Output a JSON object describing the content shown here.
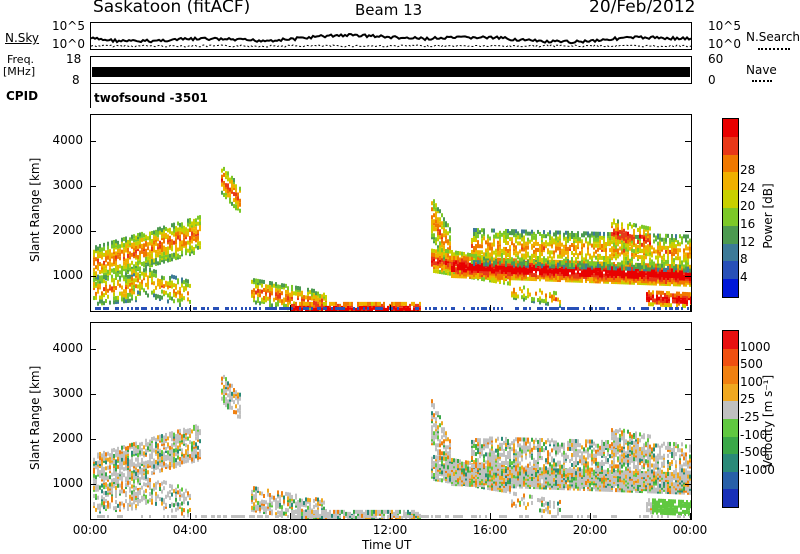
{
  "header": {
    "title": "Saskatoon (fitACF)",
    "beam": "Beam 13",
    "date": "20/Feb/2012"
  },
  "status_panels": {
    "nsky_label": "N.Sky",
    "nsky_ticks": [
      "10^5",
      "10^0"
    ],
    "nsearch_label": "N.Search",
    "nsearch_ticks": [
      "10^5",
      "10^0"
    ],
    "freq_label": "Freq.",
    "freq_unit": "[MHz]",
    "freq_ticks": [
      "18",
      "8"
    ],
    "nave_label": "Nave",
    "nave_ticks": [
      "60",
      "0"
    ],
    "cpid_label": "CPID",
    "cpid_value": "twofsound  -3501"
  },
  "chart_data": [
    {
      "type": "heatmap",
      "name_panel": "power",
      "xlabel": "",
      "ylabel": "Slant Range [km]",
      "ylim": [
        200,
        4600
      ],
      "yticks": [
        "1000",
        "2000",
        "3000",
        "4000"
      ],
      "colorbar_label": "Power [dB]",
      "colorbar_ticks": [
        "4",
        "8",
        "12",
        "16",
        "20",
        "24",
        "28"
      ],
      "colorbar_colors": [
        "#0018d8",
        "#2850b8",
        "#3c7a98",
        "#4c9a50",
        "#7cc828",
        "#c8d000",
        "#f0b000",
        "#f07800",
        "#e83818",
        "#e80000"
      ],
      "grid": false
    },
    {
      "type": "heatmap",
      "name_panel": "velocity",
      "xlabel": "Time UT",
      "ylabel": "Slant Range [km]",
      "ylim": [
        200,
        4600
      ],
      "yticks": [
        "1000",
        "2000",
        "3000",
        "4000"
      ],
      "xticks": [
        "00:00",
        "04:00",
        "08:00",
        "12:00",
        "16:00",
        "20:00",
        "00:00"
      ],
      "colorbar_label": "Velocity [m s⁻¹]",
      "colorbar_ticks": [
        "1000",
        "500",
        "100",
        "25",
        "-25",
        "-100",
        "-500",
        "-1000"
      ],
      "colorbar_colors": [
        "#1830b8",
        "#2860a8",
        "#2a8a78",
        "#3aa848",
        "#60c840",
        "#c0c0c0",
        "#f0a820",
        "#f08010",
        "#f05010",
        "#e81010"
      ],
      "grid": false
    }
  ]
}
